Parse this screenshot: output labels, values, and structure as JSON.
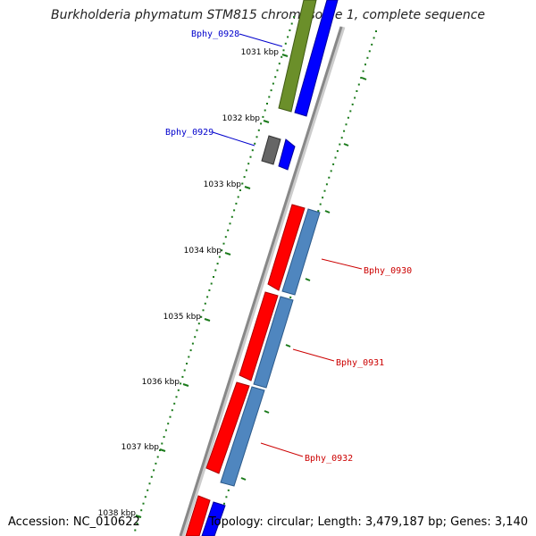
{
  "title": "Burkholderia phymatum STM815 chromosome 1, complete sequence",
  "accession": "Accession: NC_010622",
  "topology": "Topology: circular; Length: 3,479,187 bp; Genes: 3,140",
  "ticks": [
    {
      "label": "1031 kbp"
    },
    {
      "label": "1032 kbp"
    },
    {
      "label": "1033 kbp"
    },
    {
      "label": "1034 kbp"
    },
    {
      "label": "1035 kbp"
    },
    {
      "label": "1036 kbp"
    },
    {
      "label": "1037 kbp"
    },
    {
      "label": "1038 kbp"
    }
  ],
  "gene_labels": [
    {
      "name": "Bphy_0928",
      "color": "#0000cc"
    },
    {
      "name": "Bphy_0929",
      "color": "#0000cc"
    },
    {
      "name": "Bphy_0930",
      "color": "#cc0000"
    },
    {
      "name": "Bphy_0931",
      "color": "#cc0000"
    },
    {
      "name": "Bphy_0932",
      "color": "#cc0000"
    }
  ],
  "colors": {
    "backbone": "#888888",
    "tick": "#1a7a1a",
    "gene_red": "#ff0000",
    "gene_blue": "#0000ff",
    "gene_steel": "#4f86bf",
    "gene_olive": "#6b8f2a",
    "gene_gray": "#666666"
  }
}
